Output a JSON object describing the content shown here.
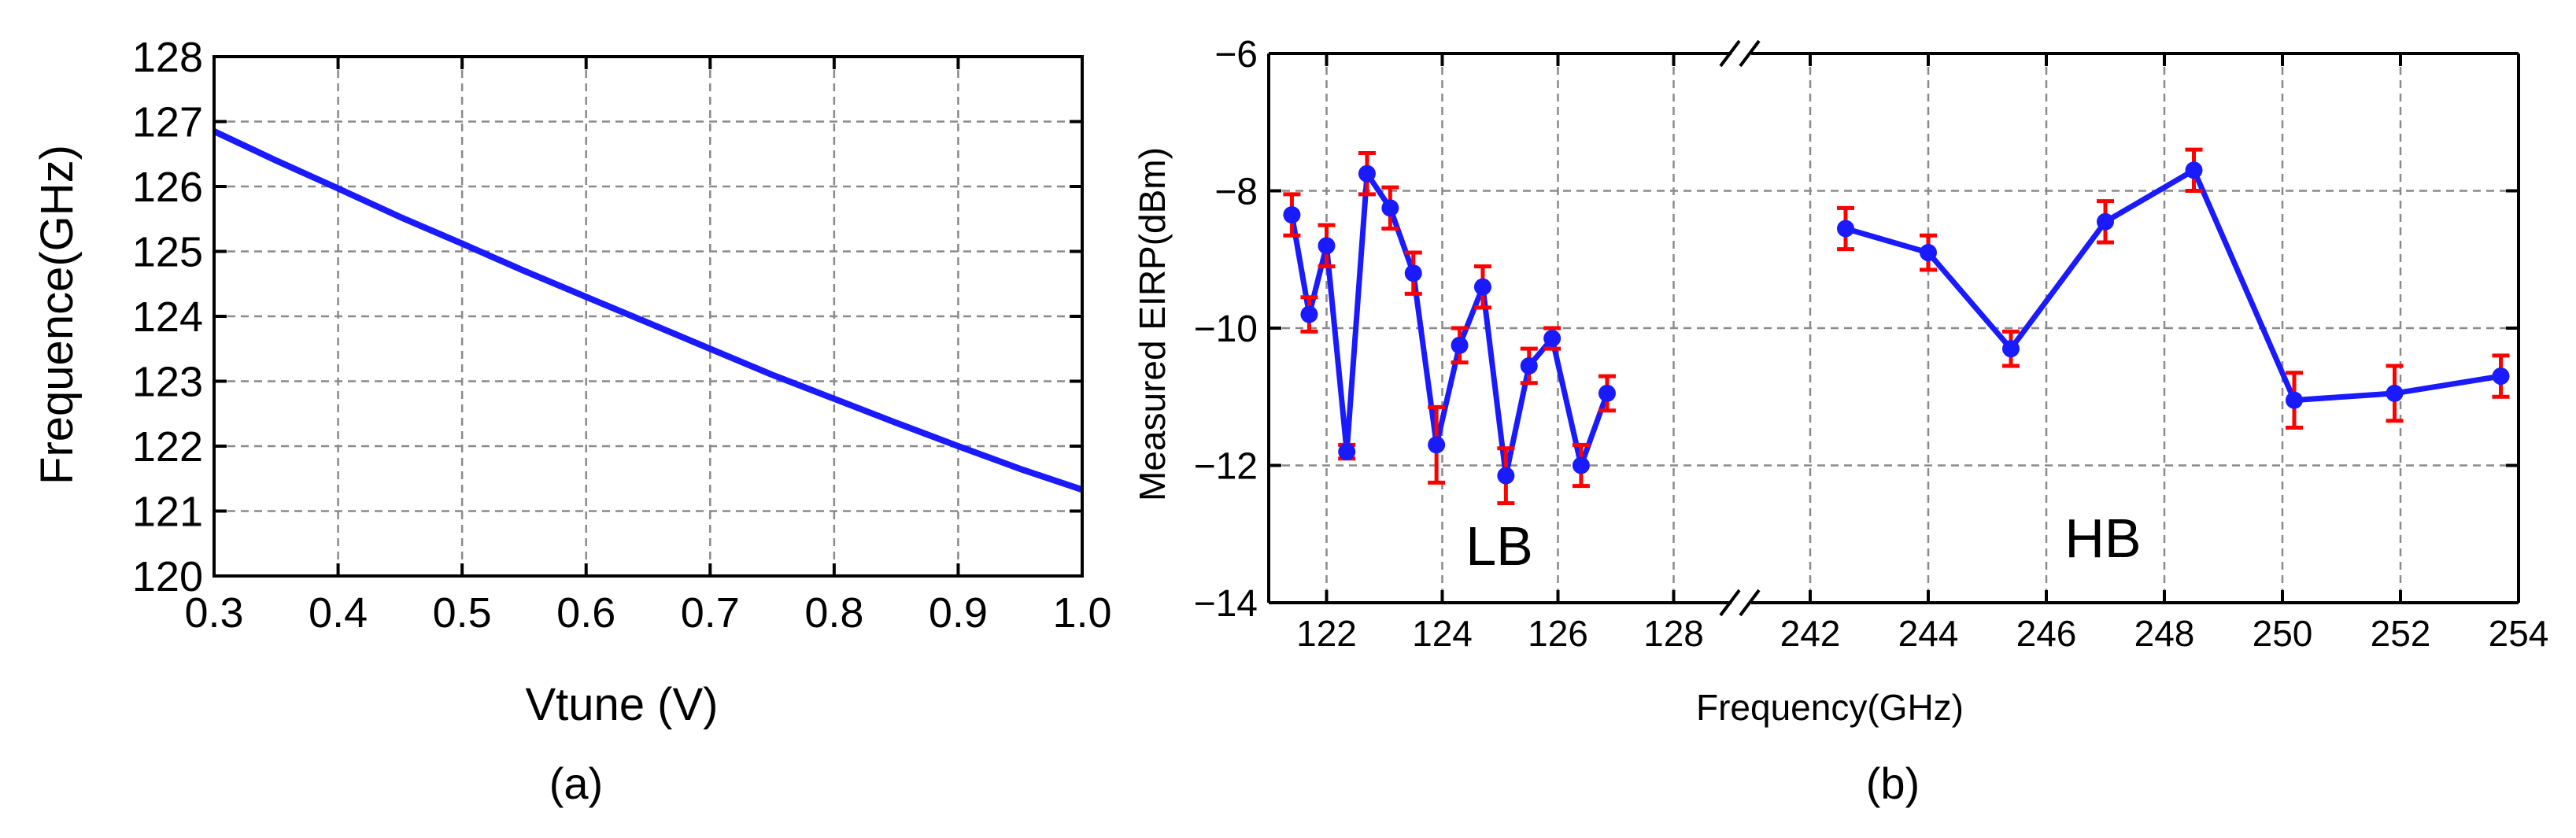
{
  "chart_data": [
    {
      "type": "line",
      "xlabel": "Vtune (V)",
      "ylabel": "Frequence(GHz)",
      "caption": "(a)",
      "xlim": [
        0.3,
        1.0
      ],
      "ylim": [
        120,
        128
      ],
      "xticks": [
        0.3,
        0.4,
        0.5,
        0.6,
        0.7,
        0.8,
        0.9,
        1.0
      ],
      "xtick_labels": [
        "0.3",
        "0.4",
        "0.5",
        "0.6",
        "0.7",
        "0.8",
        "0.9",
        "1.0"
      ],
      "yticks": [
        120,
        121,
        122,
        123,
        124,
        125,
        126,
        127,
        128
      ],
      "ytick_labels": [
        "120",
        "121",
        "122",
        "123",
        "124",
        "125",
        "126",
        "127",
        "128"
      ],
      "grid": true,
      "color": "#1a1aff",
      "series": [
        {
          "x": [
            0.3,
            0.35,
            0.4,
            0.45,
            0.5,
            0.55,
            0.6,
            0.65,
            0.7,
            0.75,
            0.8,
            0.85,
            0.9,
            0.95,
            1.0
          ],
          "y": [
            126.85,
            126.4,
            125.97,
            125.53,
            125.12,
            124.7,
            124.3,
            123.9,
            123.5,
            123.1,
            122.73,
            122.36,
            122.0,
            121.65,
            121.33
          ]
        }
      ]
    },
    {
      "type": "line",
      "xlabel": "Frequency(GHz)",
      "ylabel": "Measured EIRP(dBm)",
      "caption": "(b)",
      "broken_x_axis": true,
      "ylim": [
        -14,
        -6
      ],
      "yticks": [
        -14,
        -12,
        -10,
        -8,
        -6
      ],
      "ytick_labels": [
        "−14",
        "−12",
        "−10",
        "−8",
        "−6"
      ],
      "xlim_segments": [
        [
          121,
          129
        ],
        [
          241,
          254
        ]
      ],
      "xticks": [
        122,
        124,
        126,
        128,
        242,
        244,
        246,
        248,
        250,
        252,
        254
      ],
      "xtick_labels": [
        "122",
        "124",
        "126",
        "128",
        "242",
        "244",
        "246",
        "248",
        "250",
        "252",
        "254"
      ],
      "grid": true,
      "line_color": "#1a1aff",
      "errorbar_color": "#ff0000",
      "annotations": [
        "LB",
        "HB"
      ],
      "series": [
        {
          "x": [
            121.4,
            121.7,
            122.0,
            122.35,
            122.7,
            123.1,
            123.5,
            123.9,
            124.3,
            124.7,
            125.1,
            125.5,
            125.9,
            126.4,
            126.85
          ],
          "y": [
            -8.35,
            -9.8,
            -8.8,
            -11.8,
            -7.75,
            -8.25,
            -9.2,
            -11.7,
            -10.25,
            -9.4,
            -12.15,
            -10.55,
            -10.15,
            -12.0,
            -10.95
          ],
          "error": [
            0.3,
            0.25,
            0.3,
            0.1,
            0.3,
            0.3,
            0.3,
            0.55,
            0.25,
            0.3,
            0.4,
            0.25,
            0.15,
            0.3,
            0.25
          ]
        },
        {
          "x": [
            242.6,
            244.0,
            245.4,
            247.0,
            248.5,
            250.2,
            251.9,
            253.7
          ],
          "y": [
            -8.55,
            -8.9,
            -10.3,
            -8.45,
            -7.7,
            -11.05,
            -10.95,
            -10.7
          ],
          "error": [
            0.3,
            0.25,
            0.25,
            0.3,
            0.3,
            0.4,
            0.4,
            0.3
          ]
        }
      ]
    }
  ]
}
